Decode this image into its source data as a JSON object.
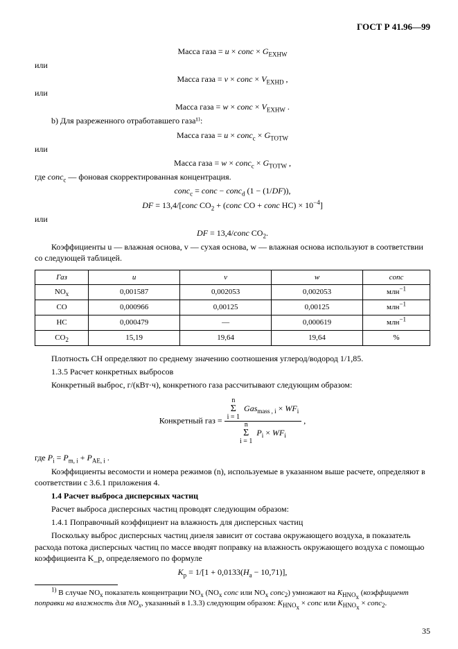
{
  "header": "ГОСТ Р 41.96—99",
  "formulas": {
    "f1": "Масса газа = u × conc × G_EXHW",
    "f2": "Масса газа = v × conc × V_EXHD ,",
    "f3": "Масса газа = w × conc × V_EXHW .",
    "f4": "Масса газа = u × conc_c × G_TOTW",
    "f5": "Масса газа = w × conc_c × G_TOTW ,",
    "f6": "conc_c = conc − conc_d (1 − (1/DF)),",
    "f7_left": "DF = 13,4/[",
    "f7_mid": "conc CO₂ + (conc CO + conc HC) × 10⁻⁴",
    "f7_right": "]",
    "f8": "DF = 13,4/conc CO₂.",
    "f9_label": "Конкретный газ =",
    "f9_num_top": "n",
    "f9_num_sigma": "Σ",
    "f9_num_bot": "i = 1",
    "f9_num_expr": "Gas_mass , i × WF_i",
    "f9_den_top": "n",
    "f9_den_sigma": "Σ",
    "f9_den_bot": "i = 1",
    "f9_den_expr": "P_i × WF_i",
    "f9_tail": ",",
    "f10": "K_p = 1/[1 + 0,0133(H_a − 10,71)],"
  },
  "text": {
    "or1": "или",
    "or2": "или",
    "b_line": "b)  Для разреженного отработавшего газа¹⁾:",
    "or3": "или",
    "where1": "где conc_c — фоновая скорректированная концентрация.",
    "or4": "или",
    "coef_note": "Коэффициенты u — влажная основа, v — сухая основа, w — влажная основа используют в соответствии со следующей таблицей.",
    "density_note": "Плотность CH определяют по среднему значению соотношения углерод/водород 1/1,85.",
    "sec_1_3_5": "1.3.5  Расчет конкретных выбросов",
    "konkret_line": "Конкретный выброс, г/(кВт·ч), конкретного газа рассчитывают следующим образом:",
    "where_P": "где P_i = P_m, i + P_AE, i .",
    "coef_weight": "Коэффициенты весомости и номера режимов (n), используемые в указанном выше расчете, определяют в соответствии с 3.6.1 приложения 4.",
    "sec_1_4": "1.4  Расчет выброса дисперсных частиц",
    "sec_1_4_line": "Расчет выброса дисперсных частиц проводят следующим образом:",
    "sec_1_4_1": "1.4.1  Поправочный коэффициент на влажность для дисперсных частиц",
    "sec_1_4_1_body": "Поскольку выброс дисперсных частиц дизеля зависит от состава окружающего воздуха, в показатель расхода потока дисперсных частиц по массе вводят поправку на влажность окружающего воздуха с помощью коэффициента K_p, определяемого по формуле",
    "footnote": "¹⁾ В случае NO_x показатель концентрации NO_x (NO_x conc или NO_x conc₂) умножают на K_HNO_x (коэффициент поправки на влажность для NO_x, указанный в 1.3.3) следующим образом: K_HNO_x × conc или K_HNO_x × conc₂."
  },
  "table": {
    "headers": [
      "Газ",
      "u",
      "v",
      "w",
      "conc"
    ],
    "rows": [
      [
        "NO_x",
        "0,001587",
        "0,002053",
        "0,002053",
        "млн⁻¹"
      ],
      [
        "CO",
        "0,000966",
        "0,00125",
        "0,00125",
        "млн⁻¹"
      ],
      [
        "HC",
        "0,000479",
        "—",
        "0,000619",
        "млн⁻¹"
      ],
      [
        "CO₂",
        "15,19",
        "19,64",
        "19,64",
        "%"
      ]
    ]
  },
  "pagenum": "35"
}
